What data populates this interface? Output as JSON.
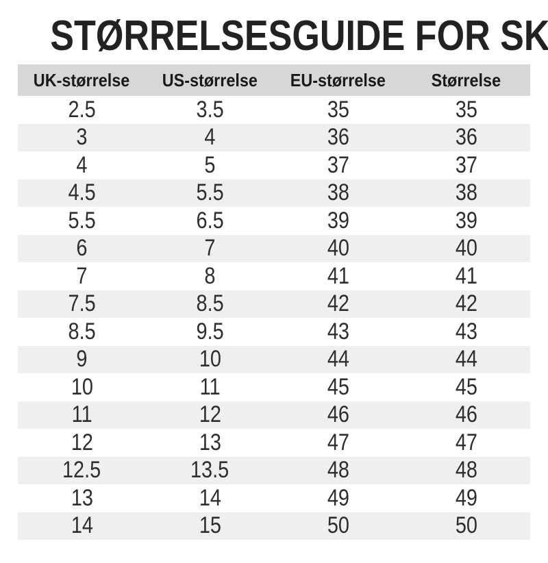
{
  "page": {
    "title": "STØRRELSESGUIDE FOR SKO"
  },
  "size_table": {
    "columns": [
      "UK-størrelse",
      "US-størrelse",
      "EU-størrelse",
      "Størrelse"
    ],
    "rows": [
      [
        "2.5",
        "3.5",
        "35",
        "35"
      ],
      [
        "3",
        "4",
        "36",
        "36"
      ],
      [
        "4",
        "5",
        "37",
        "37"
      ],
      [
        "4.5",
        "5.5",
        "38",
        "38"
      ],
      [
        "5.5",
        "6.5",
        "39",
        "39"
      ],
      [
        "6",
        "7",
        "40",
        "40"
      ],
      [
        "7",
        "8",
        "41",
        "41"
      ],
      [
        "7.5",
        "8.5",
        "42",
        "42"
      ],
      [
        "8.5",
        "9.5",
        "43",
        "43"
      ],
      [
        "9",
        "10",
        "44",
        "44"
      ],
      [
        "10",
        "11",
        "45",
        "45"
      ],
      [
        "11",
        "12",
        "46",
        "46"
      ],
      [
        "12",
        "13",
        "47",
        "47"
      ],
      [
        "12.5",
        "13.5",
        "48",
        "48"
      ],
      [
        "13",
        "14",
        "49",
        "49"
      ],
      [
        "14",
        "15",
        "50",
        "50"
      ]
    ]
  },
  "colors": {
    "page_bg": "#ffffff",
    "title_text": "#222222",
    "header_bg": "#d7d7d7",
    "header_text": "#1a1a1a",
    "stripe_bg": "#efefef",
    "cell_text": "#2e2e2e"
  }
}
